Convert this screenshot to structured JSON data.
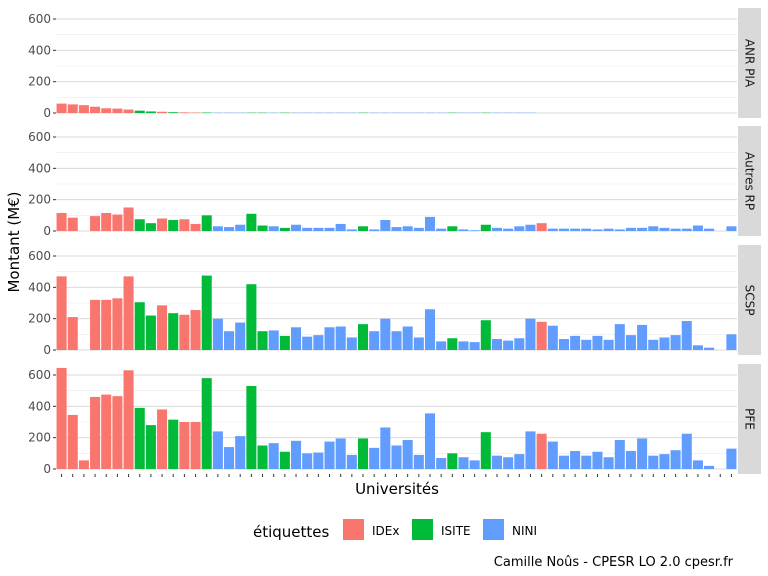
{
  "chart_data": {
    "type": "bar",
    "xlabel": "Universités",
    "ylabel": "Montant (M€)",
    "caption": "Camille Noûs - CPESR LO 2.0 cpesr.fr",
    "ylim": [
      0,
      650
    ],
    "yticks": [
      "0",
      "200",
      "400",
      "600"
    ],
    "colors": {
      "IDEx": "#F8766D",
      "ISITE": "#00BA38",
      "NINI": "#619CFF"
    },
    "legend": {
      "title": "étiquettes",
      "entries": [
        "IDEx",
        "ISITE",
        "NINI"
      ]
    },
    "categories_label": "Universités (61 établissements, libellés non lisibles)",
    "types": [
      "IDEx",
      "IDEx",
      "IDEx",
      "IDEx",
      "IDEx",
      "IDEx",
      "IDEx",
      "ISITE",
      "ISITE",
      "IDEx",
      "ISITE",
      "IDEx",
      "IDEx",
      "ISITE",
      "NINI",
      "NINI",
      "NINI",
      "ISITE",
      "ISITE",
      "NINI",
      "ISITE",
      "NINI",
      "NINI",
      "NINI",
      "NINI",
      "NINI",
      "NINI",
      "ISITE",
      "NINI",
      "NINI",
      "NINI",
      "NINI",
      "NINI",
      "NINI",
      "NINI",
      "ISITE",
      "NINI",
      "NINI",
      "ISITE",
      "NINI",
      "NINI",
      "NINI",
      "NINI",
      "IDEx",
      "NINI",
      "NINI",
      "NINI",
      "NINI",
      "NINI",
      "NINI",
      "NINI",
      "NINI",
      "NINI",
      "NINI",
      "NINI",
      "NINI",
      "NINI",
      "NINI",
      "NINI",
      "NINI",
      "NINI"
    ],
    "panels": [
      {
        "name": "ANR PIA",
        "values": [
          60,
          55,
          50,
          40,
          30,
          28,
          22,
          15,
          10,
          8,
          5,
          4,
          3,
          3,
          2,
          2,
          2,
          2,
          2,
          2,
          2,
          2,
          2,
          2,
          2,
          2,
          2,
          2,
          2,
          2,
          2,
          2,
          2,
          2,
          2,
          2,
          2,
          2,
          2,
          2,
          2,
          2,
          2,
          0,
          0,
          0,
          0,
          0,
          0,
          0,
          0,
          0,
          0,
          0,
          0,
          0,
          0,
          0,
          0,
          0,
          0
        ]
      },
      {
        "name": "Autres RP",
        "values": [
          115,
          85,
          0,
          95,
          115,
          105,
          150,
          75,
          50,
          80,
          70,
          75,
          45,
          100,
          30,
          25,
          40,
          110,
          35,
          30,
          20,
          40,
          20,
          20,
          20,
          45,
          10,
          30,
          10,
          70,
          25,
          30,
          20,
          90,
          15,
          30,
          10,
          5,
          40,
          20,
          15,
          30,
          40,
          50,
          15,
          15,
          15,
          15,
          10,
          15,
          10,
          20,
          20,
          30,
          20,
          15,
          15,
          35,
          15,
          0,
          30
        ]
      },
      {
        "name": "SCSP",
        "values": [
          470,
          210,
          0,
          320,
          320,
          330,
          470,
          305,
          220,
          285,
          235,
          225,
          255,
          475,
          200,
          120,
          175,
          420,
          120,
          125,
          90,
          145,
          85,
          95,
          145,
          150,
          80,
          165,
          120,
          200,
          120,
          150,
          80,
          260,
          55,
          75,
          55,
          50,
          190,
          70,
          60,
          75,
          200,
          180,
          155,
          70,
          90,
          65,
          90,
          65,
          165,
          95,
          160,
          65,
          80,
          95,
          185,
          30,
          15,
          0,
          100
        ]
      },
      {
        "name": "PFE",
        "values": [
          645,
          345,
          55,
          460,
          475,
          465,
          630,
          390,
          280,
          380,
          315,
          300,
          300,
          580,
          240,
          140,
          210,
          530,
          150,
          165,
          110,
          180,
          100,
          105,
          175,
          195,
          90,
          195,
          135,
          265,
          150,
          185,
          90,
          355,
          70,
          100,
          75,
          55,
          235,
          85,
          75,
          95,
          240,
          225,
          175,
          85,
          115,
          85,
          110,
          75,
          185,
          115,
          195,
          85,
          95,
          120,
          225,
          55,
          20,
          0,
          130
        ]
      }
    ]
  }
}
